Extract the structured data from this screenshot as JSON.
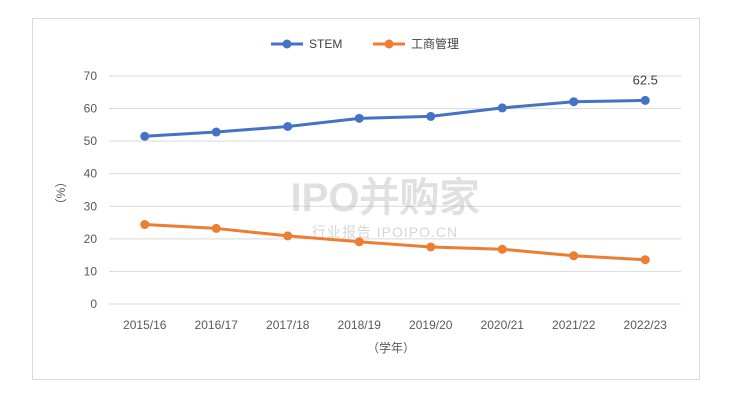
{
  "chart_data": {
    "type": "line",
    "categories": [
      "2015/16",
      "2016/17",
      "2017/18",
      "2018/19",
      "2019/20",
      "2020/21",
      "2021/22",
      "2022/23"
    ],
    "series": [
      {
        "name": "STEM",
        "color": "#4472c4",
        "values": [
          51.5,
          52.8,
          54.5,
          57.0,
          57.6,
          60.2,
          62.1,
          62.5
        ]
      },
      {
        "name": "工商管理",
        "color": "#ed7d31",
        "values": [
          24.4,
          23.2,
          20.9,
          19.1,
          17.5,
          16.8,
          14.8,
          13.6
        ]
      }
    ],
    "data_labels": [
      {
        "series": 0,
        "index": 7,
        "text": "62.5"
      }
    ],
    "ylabel": "（%）",
    "xlabel": "（学年）",
    "ylim": [
      0,
      70
    ],
    "yticks": [
      0,
      10,
      20,
      30,
      40,
      50,
      60,
      70
    ],
    "grid": true,
    "legend": "top-center"
  },
  "watermark": {
    "title": "IPO并购家",
    "subtitle": "行业报告 IPOIPO.CN"
  }
}
